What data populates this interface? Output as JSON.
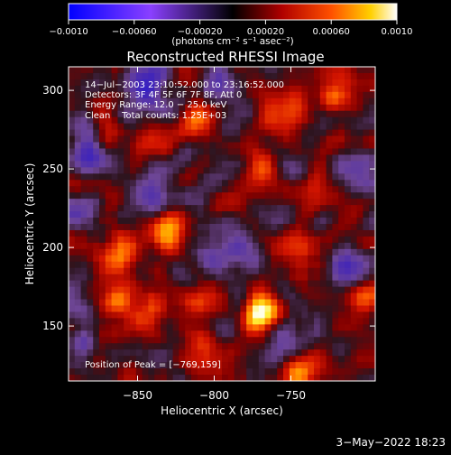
{
  "chart_data": {
    "type": "heatmap",
    "title": "Reconstructed RHESSI Image",
    "xlabel": "Heliocentric X (arcsec)",
    "ylabel": "Heliocentric Y (arcsec)",
    "xlim": [
      -895,
      -695
    ],
    "ylim": [
      115,
      315
    ],
    "x_ticks": [
      -850,
      -800,
      -750
    ],
    "x_tick_labels": [
      "−850",
      "−800",
      "−750"
    ],
    "y_ticks": [
      150,
      200,
      250,
      300
    ],
    "y_tick_labels": [
      "150",
      "200",
      "250",
      "300"
    ],
    "colorbar": {
      "range": [
        -0.001,
        0.001
      ],
      "ticks": [
        -0.001,
        -0.0006,
        -0.0002,
        0.0002,
        0.0006,
        0.001
      ],
      "tick_labels": [
        "−0.0010",
        "−0.00060",
        "−0.00020",
        "0.00020",
        "0.00060",
        "0.0010"
      ],
      "unit_label": "(photons cm⁻² s⁻¹ asec⁻²)"
    },
    "annotations": [
      "14−Jul−2003 23:10:52.000 to 23:16:52.000",
      "Detectors: 3F 4F 5F 6F 7F 8F, Att 0",
      "Energy Range: 12.0 − 25.0 keV",
      "Clean    Total counts: 1.25E+03"
    ],
    "peak_label": "Position of Peak = [−769,159]",
    "peak": [
      -769,
      159
    ],
    "peak_value": 0.001,
    "bright_regions": [
      {
        "x": -768,
        "y": 159,
        "v": 0.001
      },
      {
        "x": -828,
        "y": 212,
        "v": 0.00075
      },
      {
        "x": -862,
        "y": 195,
        "v": 0.0006
      },
      {
        "x": -862,
        "y": 170,
        "v": 0.0005
      },
      {
        "x": -842,
        "y": 155,
        "v": 0.00045
      },
      {
        "x": -805,
        "y": 170,
        "v": 0.0005
      },
      {
        "x": -770,
        "y": 250,
        "v": 0.0006
      },
      {
        "x": -752,
        "y": 288,
        "v": 0.0006
      },
      {
        "x": -808,
        "y": 280,
        "v": 0.00045
      },
      {
        "x": -745,
        "y": 200,
        "v": 0.0005
      },
      {
        "x": -732,
        "y": 232,
        "v": 0.00045
      },
      {
        "x": -720,
        "y": 300,
        "v": 0.0005
      },
      {
        "x": -745,
        "y": 122,
        "v": 0.0006
      },
      {
        "x": -872,
        "y": 270,
        "v": 0.00035
      },
      {
        "x": -705,
        "y": 165,
        "v": 0.00045
      },
      {
        "x": -812,
        "y": 135,
        "v": 0.00035
      },
      {
        "x": -840,
        "y": 270,
        "v": 0.0003
      }
    ],
    "dark_regions": [
      {
        "x": -880,
        "y": 262,
        "v": -0.0006
      },
      {
        "x": -712,
        "y": 185,
        "v": -0.00055
      },
      {
        "x": -795,
        "y": 300,
        "v": -0.00045
      },
      {
        "x": -845,
        "y": 305,
        "v": -0.0004
      },
      {
        "x": -840,
        "y": 230,
        "v": -0.00045
      },
      {
        "x": -885,
        "y": 135,
        "v": -0.00035
      },
      {
        "x": -703,
        "y": 248,
        "v": -0.0004
      },
      {
        "x": -785,
        "y": 195,
        "v": -0.00035
      },
      {
        "x": -755,
        "y": 140,
        "v": -0.0003
      }
    ]
  },
  "timestamp": "3−May−2022 18:23"
}
